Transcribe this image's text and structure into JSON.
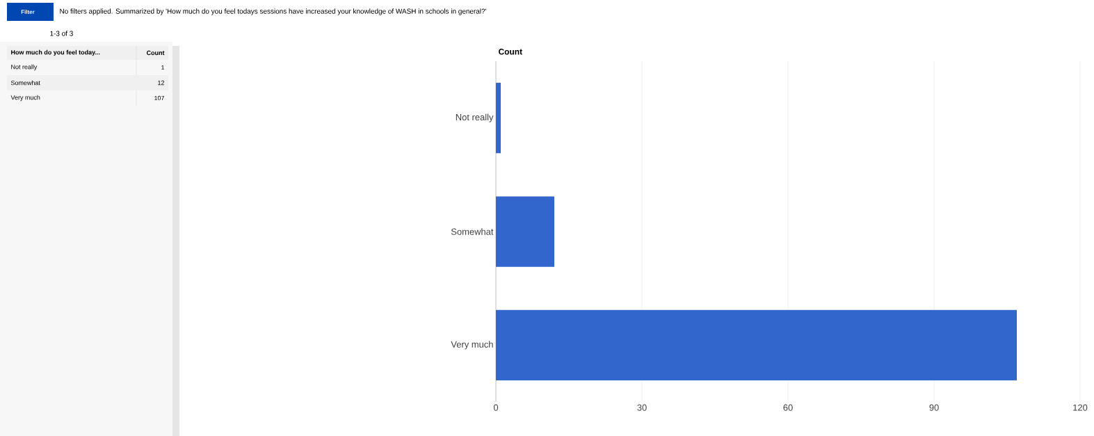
{
  "chart_data": [
    {
      "type": "other",
      "annotations": [
        "Filter",
        "No filters applied. Summarized by 'How much do you feel todays sessions have increased your knowledge of WASH in schools in general?'",
        "1-3 of 3",
        "How much do you feel today...",
        "Count",
        "Not really",
        "1",
        "Somewhat",
        "12",
        "Very much",
        "107"
      ]
    },
    {
      "type": "bar",
      "orientation": "horizontal",
      "title": "Count",
      "categories": [
        "Not really",
        "Somewhat",
        "Very much"
      ],
      "values": [
        1,
        12,
        107
      ],
      "color": "#3366cc",
      "xlim": [
        0,
        120
      ],
      "xticks": [
        0,
        30,
        60,
        90,
        120
      ],
      "grid": "x"
    }
  ]
}
